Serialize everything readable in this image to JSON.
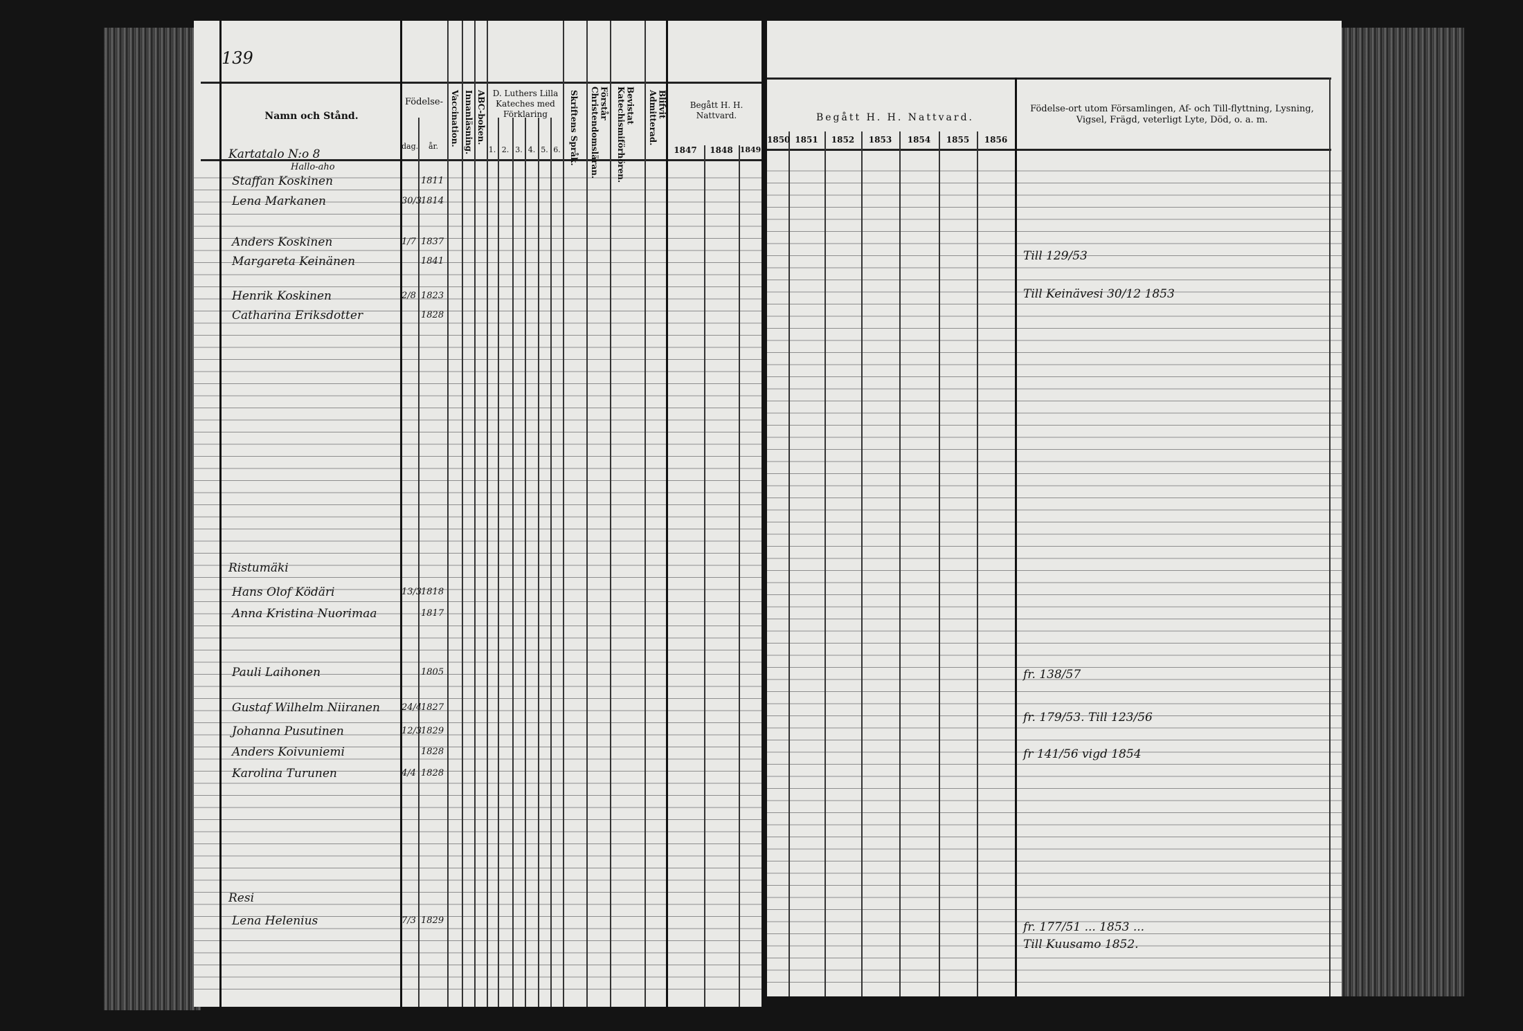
{
  "left_page": {
    "page_number": "139",
    "headers": {
      "name": "Namn och Stånd.",
      "birth": "Födelse-",
      "birth_day": "dag.",
      "birth_year": "år.",
      "vaccination": "Vaccination.",
      "reading": "Innanläsning.",
      "abc": "ABC-boken.",
      "catechism": "D. Luthers Lilla Kateches med Förklaring",
      "catechism_parts": [
        "1.",
        "2.",
        "3.",
        "4.",
        "5.",
        "6."
      ],
      "scripture": "Skriftens Språk.",
      "christian_doctrine": "Förstår Christendomsläran.",
      "catechism_hearing": "Bevistat Katechismiförhören.",
      "admitted": "Blifvit Admitterad.",
      "communion": "Begått H. H. Nattvard.",
      "years": [
        "1847",
        "1848",
        "1849"
      ]
    },
    "entries": [
      {
        "name": "Kartatalo N:o 8"
      },
      {
        "name": "Hallo-aho"
      },
      {
        "name": "Staffan Koskinen",
        "year": "1811"
      },
      {
        "name": "Lena Markanen",
        "day": "30/3",
        "year": "1814"
      },
      {
        "name": "Anders Koskinen",
        "day": "1/7",
        "year": "1837"
      },
      {
        "name": "Margareta Keinänen",
        "year": "1841"
      },
      {
        "name": "Henrik Koskinen",
        "day": "2/8",
        "year": "1823"
      },
      {
        "name": "Catharina Eriksdotter",
        "year": "1828"
      },
      {
        "name": "Ristumäki"
      },
      {
        "name": "Hans Olof Ködäri",
        "day": "13/3",
        "year": "1818"
      },
      {
        "name": "Anna Kristina Nuorimaa",
        "year": "1817"
      },
      {
        "name": "Pauli Laihonen",
        "year": "1805"
      },
      {
        "name": "Gustaf Wilhelm Niiranen",
        "day": "24/4",
        "year": "1827"
      },
      {
        "name": "Johanna Pusutinen",
        "day": "12/3",
        "year": "1829"
      },
      {
        "name": "Anders Koivuniemi",
        "year": "1828"
      },
      {
        "name": "Karolina Turunen",
        "day": "4/4",
        "year": "1828"
      },
      {
        "name": "Resi"
      },
      {
        "name": "Lena Helenius",
        "day": "7/3",
        "year": "1829"
      }
    ]
  },
  "right_page": {
    "headers": {
      "communion": "Begått H. H. Nattvard.",
      "years": [
        "1850",
        "1851",
        "1852",
        "1853",
        "1854",
        "1855",
        "1856"
      ],
      "remarks": "Födelse-ort utom Församlingen, Af- och Till-flyttning, Lysning, Vigsel, Frägd, veterligt Lyte, Död, o. a. m."
    },
    "notes": [
      "Till 129/53",
      "Till Keinävesi 30/12 1853",
      "fr. 138/57",
      "fr. 179/53. Till 123/56",
      "fr 141/56 vigd 1854",
      "fr. 177/51 ... 1853 ...",
      "Till Kuusamo 1852."
    ]
  }
}
